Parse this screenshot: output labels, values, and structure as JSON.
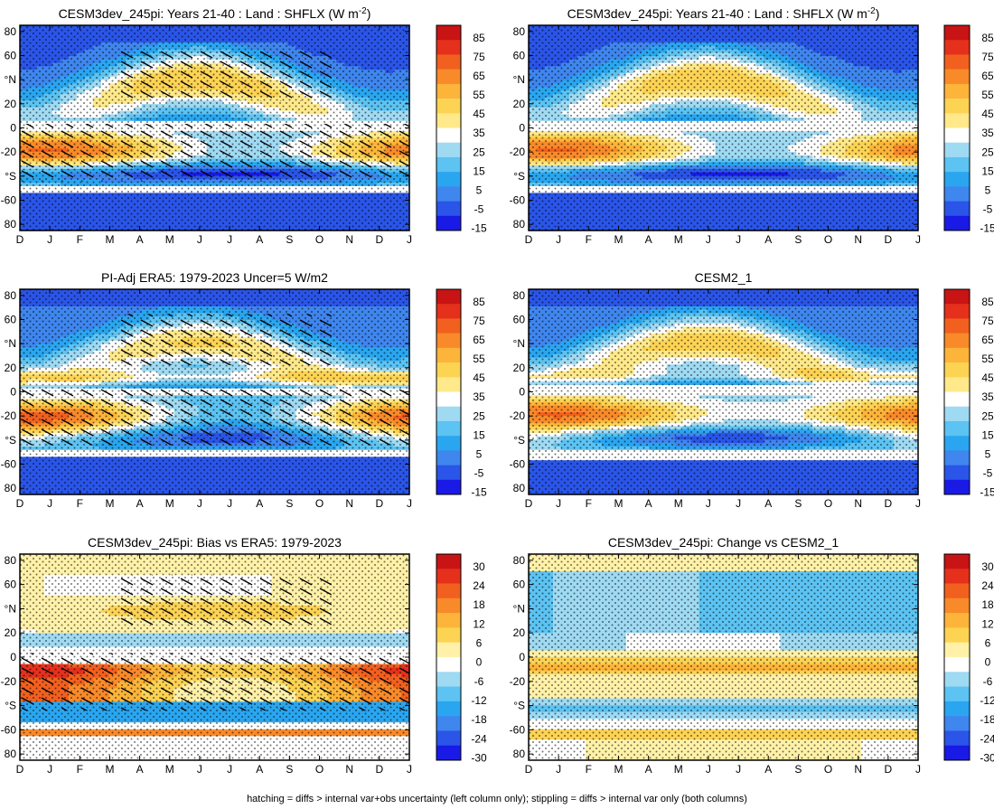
{
  "footer": "hatching = diffs > internal var+obs uncertainty (left column only); stippling = diffs > internal var only (both columns)",
  "colors": {
    "abs": [
      "#1a1ae6",
      "#2a55e8",
      "#3f86ee",
      "#2aa6f0",
      "#5cc3f2",
      "#9fdaf3",
      "#ffffff",
      "#ffe98a",
      "#fdd354",
      "#fcb43a",
      "#f98a2a",
      "#f2601f",
      "#e5301c",
      "#c81414"
    ],
    "diff": [
      "#1a1ae6",
      "#2a55e8",
      "#3f86ee",
      "#2aa6f0",
      "#5cc3f2",
      "#9fdaf3",
      "#ffffff",
      "#fff1a8",
      "#fdd354",
      "#fcb43a",
      "#f98a2a",
      "#f2601f",
      "#e5301c",
      "#c81414"
    ]
  },
  "chart_data": [
    {
      "type": "heatmap",
      "title": "CESM3dev_245pi: Years 21-40 : Land : SHFLX (W m",
      "title_sup": "-2",
      "title_end": ")",
      "x_ticks": [
        "D",
        "J",
        "F",
        "M",
        "A",
        "M",
        "J",
        "J",
        "A",
        "S",
        "O",
        "N",
        "D",
        "J"
      ],
      "y_ticks": [
        "80",
        "60",
        "°N",
        "20",
        "0",
        "-20",
        "°S",
        "-60",
        "80"
      ],
      "ylim": [
        -90,
        90
      ],
      "colorbar": [
        "85",
        "75",
        "65",
        "55",
        "45",
        "35",
        "25",
        "15",
        "5",
        "-5",
        "-15"
      ],
      "palette": "abs",
      "hatching": true,
      "stippling": true,
      "pattern": "model"
    },
    {
      "type": "heatmap",
      "title": "CESM3dev_245pi: Years 21-40 : Land : SHFLX (W m",
      "title_sup": "-2",
      "title_end": ")",
      "x_ticks": [
        "D",
        "J",
        "F",
        "M",
        "A",
        "M",
        "J",
        "J",
        "A",
        "S",
        "O",
        "N",
        "D",
        "J"
      ],
      "y_ticks": [
        "80",
        "60",
        "°N",
        "20",
        "0",
        "-20",
        "°S",
        "-60",
        "80"
      ],
      "ylim": [
        -90,
        90
      ],
      "colorbar": [
        "85",
        "75",
        "65",
        "55",
        "45",
        "35",
        "25",
        "15",
        "5",
        "-5",
        "-15"
      ],
      "palette": "abs",
      "hatching": false,
      "stippling": true,
      "pattern": "model"
    },
    {
      "type": "heatmap",
      "title": "PI-Adj ERA5: 1979-2023 Uncer=5 W/m2",
      "x_ticks": [
        "D",
        "J",
        "F",
        "M",
        "A",
        "M",
        "J",
        "J",
        "A",
        "S",
        "O",
        "N",
        "D",
        "J"
      ],
      "y_ticks": [
        "80",
        "60",
        "°N",
        "20",
        "0",
        "-20",
        "°S",
        "-60",
        "80"
      ],
      "ylim": [
        -90,
        90
      ],
      "colorbar": [
        "85",
        "75",
        "65",
        "55",
        "45",
        "35",
        "25",
        "15",
        "5",
        "-5",
        "-15"
      ],
      "palette": "abs",
      "hatching": true,
      "stippling": true,
      "pattern": "obs"
    },
    {
      "type": "heatmap",
      "title": "CESM2_1",
      "x_ticks": [
        "D",
        "J",
        "F",
        "M",
        "A",
        "M",
        "J",
        "J",
        "A",
        "S",
        "O",
        "N",
        "D",
        "J"
      ],
      "y_ticks": [
        "80",
        "60",
        "°N",
        "20",
        "0",
        "-20",
        "°S",
        "-60",
        "80"
      ],
      "ylim": [
        -90,
        90
      ],
      "colorbar": [
        "85",
        "75",
        "65",
        "55",
        "45",
        "35",
        "25",
        "15",
        "5",
        "-5",
        "-15"
      ],
      "palette": "abs",
      "hatching": false,
      "stippling": true,
      "pattern": "cesm2"
    },
    {
      "type": "heatmap",
      "title": "CESM3dev_245pi: Bias vs ERA5: 1979-2023",
      "x_ticks": [
        "D",
        "J",
        "F",
        "M",
        "A",
        "M",
        "J",
        "J",
        "A",
        "S",
        "O",
        "N",
        "D",
        "J"
      ],
      "y_ticks": [
        "80",
        "60",
        "°N",
        "20",
        "0",
        "-20",
        "°S",
        "-60",
        "80"
      ],
      "ylim": [
        -90,
        90
      ],
      "colorbar": [
        "30",
        "24",
        "18",
        "12",
        "6",
        "0",
        "-6",
        "-12",
        "-18",
        "-24",
        "-30"
      ],
      "palette": "diff",
      "hatching": true,
      "stippling": true,
      "pattern": "bias"
    },
    {
      "type": "heatmap",
      "title": "CESM3dev_245pi: Change vs CESM2_1",
      "x_ticks": [
        "D",
        "J",
        "F",
        "M",
        "A",
        "M",
        "J",
        "J",
        "A",
        "S",
        "O",
        "N",
        "D",
        "J"
      ],
      "y_ticks": [
        "80",
        "60",
        "°N",
        "20",
        "0",
        "-20",
        "°S",
        "-60",
        "80"
      ],
      "ylim": [
        -90,
        90
      ],
      "colorbar": [
        "30",
        "24",
        "18",
        "12",
        "6",
        "0",
        "-6",
        "-12",
        "-18",
        "-24",
        "-30"
      ],
      "palette": "diff",
      "hatching": false,
      "stippling": true,
      "pattern": "change"
    }
  ]
}
